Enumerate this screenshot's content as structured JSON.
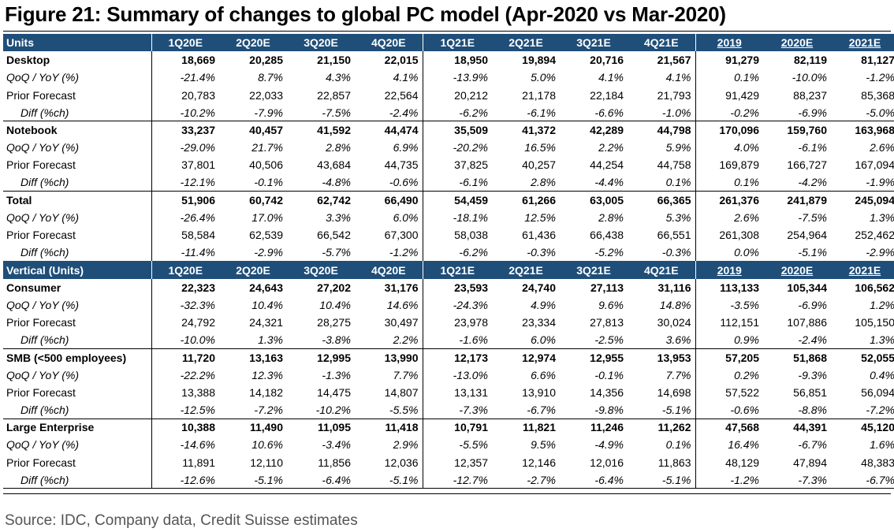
{
  "title": "Figure 21: Summary of changes to global PC model (Apr-2020 vs Mar-2020)",
  "source": "Source: IDC, Company data, Credit Suisse estimates",
  "colors": {
    "header_bg": "#1f4e79",
    "header_text": "#ffffff"
  },
  "chart_data": {
    "type": "table",
    "sections": [
      {
        "header": [
          "Units",
          "1Q20E",
          "2Q20E",
          "3Q20E",
          "4Q20E",
          "1Q21E",
          "2Q21E",
          "3Q21E",
          "4Q21E",
          "2019",
          "2020E",
          "2021E"
        ],
        "groups": [
          {
            "rows": [
              [
                "Desktop",
                "18,669",
                "20,285",
                "21,150",
                "22,015",
                "18,950",
                "19,894",
                "20,716",
                "21,567",
                "91,279",
                "82,119",
                "81,127"
              ],
              [
                "QoQ / YoY (%)",
                "-21.4%",
                "8.7%",
                "4.3%",
                "4.1%",
                "-13.9%",
                "5.0%",
                "4.1%",
                "4.1%",
                "0.1%",
                "-10.0%",
                "-1.2%"
              ],
              [
                "Prior Forecast",
                "20,783",
                "22,033",
                "22,857",
                "22,564",
                "20,212",
                "21,178",
                "22,184",
                "21,793",
                "91,429",
                "88,237",
                "85,368"
              ],
              [
                "Diff (%ch)",
                "-10.2%",
                "-7.9%",
                "-7.5%",
                "-2.4%",
                "-6.2%",
                "-6.1%",
                "-6.6%",
                "-1.0%",
                "-0.2%",
                "-6.9%",
                "-5.0%"
              ]
            ]
          },
          {
            "rows": [
              [
                "Notebook",
                "33,237",
                "40,457",
                "41,592",
                "44,474",
                "35,509",
                "41,372",
                "42,289",
                "44,798",
                "170,096",
                "159,760",
                "163,968"
              ],
              [
                "QoQ / YoY (%)",
                "-29.0%",
                "21.7%",
                "2.8%",
                "6.9%",
                "-20.2%",
                "16.5%",
                "2.2%",
                "5.9%",
                "4.0%",
                "-6.1%",
                "2.6%"
              ],
              [
                "Prior Forecast",
                "37,801",
                "40,506",
                "43,684",
                "44,735",
                "37,825",
                "40,257",
                "44,254",
                "44,758",
                "169,879",
                "166,727",
                "167,094"
              ],
              [
                "Diff (%ch)",
                "-12.1%",
                "-0.1%",
                "-4.8%",
                "-0.6%",
                "-6.1%",
                "2.8%",
                "-4.4%",
                "0.1%",
                "0.1%",
                "-4.2%",
                "-1.9%"
              ]
            ]
          },
          {
            "rows": [
              [
                "Total",
                "51,906",
                "60,742",
                "62,742",
                "66,490",
                "54,459",
                "61,266",
                "63,005",
                "66,365",
                "261,376",
                "241,879",
                "245,094"
              ],
              [
                "QoQ / YoY (%)",
                "-26.4%",
                "17.0%",
                "3.3%",
                "6.0%",
                "-18.1%",
                "12.5%",
                "2.8%",
                "5.3%",
                "2.6%",
                "-7.5%",
                "1.3%"
              ],
              [
                "Prior Forecast",
                "58,584",
                "62,539",
                "66,542",
                "67,300",
                "58,038",
                "61,436",
                "66,438",
                "66,551",
                "261,308",
                "254,964",
                "252,462"
              ],
              [
                "Diff (%ch)",
                "-11.4%",
                "-2.9%",
                "-5.7%",
                "-1.2%",
                "-6.2%",
                "-0.3%",
                "-5.2%",
                "-0.3%",
                "0.0%",
                "-5.1%",
                "-2.9%"
              ]
            ]
          }
        ]
      },
      {
        "header": [
          "Vertical (Units)",
          "1Q20E",
          "2Q20E",
          "3Q20E",
          "4Q20E",
          "1Q21E",
          "2Q21E",
          "3Q21E",
          "4Q21E",
          "2019",
          "2020E",
          "2021E"
        ],
        "groups": [
          {
            "rows": [
              [
                "Consumer",
                "22,323",
                "24,643",
                "27,202",
                "31,176",
                "23,593",
                "24,740",
                "27,113",
                "31,116",
                "113,133",
                "105,344",
                "106,562"
              ],
              [
                "QoQ / YoY (%)",
                "-32.3%",
                "10.4%",
                "10.4%",
                "14.6%",
                "-24.3%",
                "4.9%",
                "9.6%",
                "14.8%",
                "-3.5%",
                "-6.9%",
                "1.2%"
              ],
              [
                "Prior Forecast",
                "24,792",
                "24,321",
                "28,275",
                "30,497",
                "23,978",
                "23,334",
                "27,813",
                "30,024",
                "112,151",
                "107,886",
                "105,150"
              ],
              [
                "Diff (%ch)",
                "-10.0%",
                "1.3%",
                "-3.8%",
                "2.2%",
                "-1.6%",
                "6.0%",
                "-2.5%",
                "3.6%",
                "0.9%",
                "-2.4%",
                "1.3%"
              ]
            ]
          },
          {
            "rows": [
              [
                "SMB (<500 employees)",
                "11,720",
                "13,163",
                "12,995",
                "13,990",
                "12,173",
                "12,974",
                "12,955",
                "13,953",
                "57,205",
                "51,868",
                "52,055"
              ],
              [
                "QoQ / YoY (%)",
                "-22.2%",
                "12.3%",
                "-1.3%",
                "7.7%",
                "-13.0%",
                "6.6%",
                "-0.1%",
                "7.7%",
                "0.2%",
                "-9.3%",
                "0.4%"
              ],
              [
                "Prior Forecast",
                "13,388",
                "14,182",
                "14,475",
                "14,807",
                "13,131",
                "13,910",
                "14,356",
                "14,698",
                "57,522",
                "56,851",
                "56,094"
              ],
              [
                "Diff (%ch)",
                "-12.5%",
                "-7.2%",
                "-10.2%",
                "-5.5%",
                "-7.3%",
                "-6.7%",
                "-9.8%",
                "-5.1%",
                "-0.6%",
                "-8.8%",
                "-7.2%"
              ]
            ]
          },
          {
            "rows": [
              [
                "Large Enterprise",
                "10,388",
                "11,490",
                "11,095",
                "11,418",
                "10,791",
                "11,821",
                "11,246",
                "11,262",
                "47,568",
                "44,391",
                "45,120"
              ],
              [
                "QoQ / YoY (%)",
                "-14.6%",
                "10.6%",
                "-3.4%",
                "2.9%",
                "-5.5%",
                "9.5%",
                "-4.9%",
                "0.1%",
                "16.4%",
                "-6.7%",
                "1.6%"
              ],
              [
                "Prior Forecast",
                "11,891",
                "12,110",
                "11,856",
                "12,036",
                "12,357",
                "12,146",
                "12,016",
                "11,863",
                "48,129",
                "47,894",
                "48,383"
              ],
              [
                "Diff (%ch)",
                "-12.6%",
                "-5.1%",
                "-6.4%",
                "-5.1%",
                "-12.7%",
                "-2.7%",
                "-6.4%",
                "-5.1%",
                "-1.2%",
                "-7.3%",
                "-6.7%"
              ]
            ]
          }
        ]
      }
    ]
  }
}
